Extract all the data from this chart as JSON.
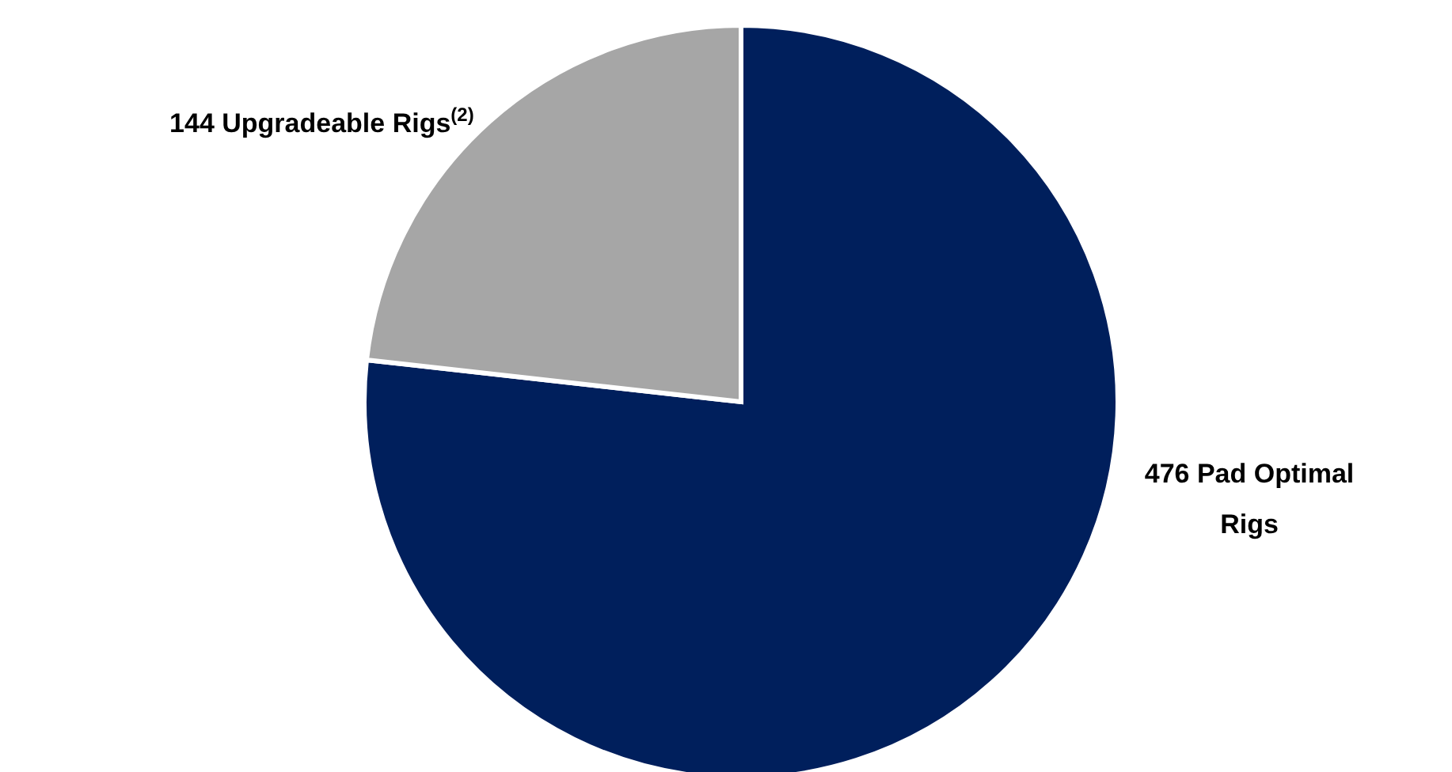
{
  "chart_data": {
    "type": "pie",
    "categories": [
      "476 Pad Optimal Rigs",
      "144 Upgradeable Rigs$^{(2)}$"
    ],
    "values": [
      476,
      144
    ],
    "colors": [
      "#001f5c",
      "#a6a6a6"
    ]
  }
}
